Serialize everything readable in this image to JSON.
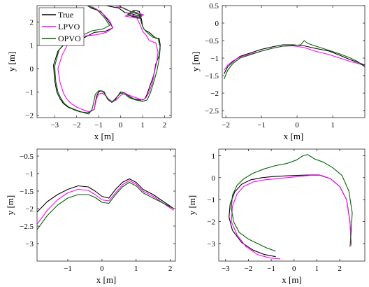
{
  "colors": {
    "true": "#000000",
    "lpvo": "#ff00ff",
    "opvo": "#006400"
  },
  "chart_data": [
    {
      "type": "line",
      "xlabel": "x [m]",
      "ylabel": "y [m]",
      "xlim": [
        -3.8,
        2.3
      ],
      "ylim": [
        -2.1,
        2.7
      ],
      "xticks": [
        -3,
        -2,
        -1,
        0,
        1,
        2
      ],
      "yticks": [
        -2,
        -1,
        0,
        1,
        2
      ],
      "legend": "top-left",
      "series": [
        {
          "name": "True",
          "color": "#000000",
          "x": [
            -1.5,
            -1.35,
            -1.2,
            -0.9,
            -0.6,
            -0.35,
            -0.7,
            -1.2,
            -1.6,
            -2.0,
            -2.5,
            -2.85,
            -3.05,
            -3.0,
            -2.9,
            -2.75,
            -2.6,
            -2.4,
            -2.15,
            -1.85,
            -1.5,
            -1.2,
            -1.1,
            -1.0,
            -0.9,
            -0.75,
            -0.6,
            -0.4,
            -0.25,
            -0.15,
            0.0,
            0.2,
            0.4,
            0.6,
            0.9,
            1.1,
            1.2,
            1.35,
            1.5,
            1.6,
            1.75,
            1.8,
            1.75,
            1.6,
            1.3,
            1.1,
            1.0,
            0.95,
            0.85,
            0.6,
            0.3,
            0.9,
            0.85,
            0.5,
            0.2,
            -0.1,
            -0.4,
            -0.65
          ],
          "y": [
            2.7,
            2.6,
            2.55,
            2.45,
            2.1,
            1.75,
            1.6,
            1.55,
            1.35,
            1.2,
            1.1,
            0.75,
            0.15,
            -0.5,
            -1.0,
            -1.3,
            -1.5,
            -1.65,
            -1.75,
            -1.85,
            -1.9,
            -1.75,
            -1.2,
            -1.0,
            -0.95,
            -1.0,
            -1.3,
            -1.45,
            -1.35,
            -1.2,
            -1.0,
            -1.05,
            -1.2,
            -1.3,
            -1.35,
            -1.3,
            -1.1,
            -0.7,
            -0.3,
            0.2,
            0.55,
            1.0,
            1.3,
            1.3,
            1.55,
            1.65,
            1.8,
            2.1,
            2.45,
            2.5,
            2.3,
            2.15,
            2.25,
            2.35,
            2.4,
            2.6,
            2.65,
            2.7
          ]
        },
        {
          "name": "LPVO",
          "color": "#ff00ff",
          "x": [
            -1.3,
            -1.1,
            -0.8,
            -0.5,
            -0.35,
            -0.65,
            -1.1,
            -1.6,
            -2.0,
            -2.4,
            -2.65,
            -2.85,
            -2.75,
            -2.6,
            -2.45,
            -2.25,
            -2.0,
            -1.75,
            -1.45,
            -1.2,
            -1.1,
            -1.0,
            -0.85,
            -0.7,
            -0.55,
            -0.4,
            -0.2,
            0.0,
            0.2,
            0.4,
            0.7,
            1.0,
            1.15,
            1.3,
            1.45,
            1.55,
            1.65,
            1.7,
            1.6,
            1.3,
            1.15,
            1.0,
            0.9,
            0.75,
            0.5,
            0.2,
            0.8,
            1.05,
            0.75,
            0.45,
            0.15,
            -0.2
          ],
          "y": [
            2.65,
            2.55,
            2.35,
            2.05,
            1.75,
            1.55,
            1.45,
            1.4,
            1.3,
            1.05,
            0.6,
            0.0,
            -0.6,
            -1.05,
            -1.3,
            -1.5,
            -1.65,
            -1.75,
            -1.85,
            -1.75,
            -1.3,
            -1.1,
            -1.05,
            -1.15,
            -1.3,
            -1.4,
            -1.35,
            -1.15,
            -1.05,
            -1.15,
            -1.25,
            -1.35,
            -1.25,
            -1.0,
            -0.6,
            -0.1,
            0.3,
            0.7,
            1.1,
            1.2,
            1.45,
            1.6,
            1.85,
            2.15,
            2.35,
            2.25,
            2.15,
            2.3,
            2.4,
            2.45,
            2.6,
            2.65
          ]
        },
        {
          "name": "OPVO",
          "color": "#006400",
          "x": [
            -1.45,
            -1.3,
            -1.05,
            -0.75,
            -0.5,
            -0.8,
            -1.3,
            -1.7,
            -2.1,
            -2.5,
            -2.8,
            -3.0,
            -2.95,
            -2.85,
            -2.7,
            -2.55,
            -2.35,
            -2.1,
            -1.8,
            -1.45,
            -1.3,
            -1.25,
            -1.15,
            -1.0,
            -0.85,
            -0.7,
            -0.55,
            -0.4,
            -0.25,
            0.0,
            0.2,
            0.4,
            0.7,
            1.0,
            1.2,
            1.35,
            1.5,
            1.65,
            1.75,
            1.8,
            1.7,
            1.45,
            1.2,
            1.05,
            0.95,
            0.85,
            0.6,
            0.3,
            0.9,
            0.95,
            0.55,
            0.2,
            -0.1,
            -0.45,
            -0.7
          ],
          "y": [
            2.72,
            2.62,
            2.5,
            2.2,
            1.85,
            1.7,
            1.62,
            1.45,
            1.3,
            1.15,
            0.8,
            0.1,
            -0.55,
            -1.0,
            -1.3,
            -1.5,
            -1.65,
            -1.75,
            -1.85,
            -1.95,
            -1.75,
            -1.55,
            -1.1,
            -0.95,
            -0.95,
            -1.1,
            -1.35,
            -1.45,
            -1.3,
            -1.05,
            -1.1,
            -1.25,
            -1.35,
            -1.4,
            -1.35,
            -1.05,
            -0.6,
            -0.1,
            0.4,
            0.9,
            1.3,
            1.35,
            1.55,
            1.7,
            1.95,
            2.3,
            2.45,
            2.3,
            2.2,
            2.3,
            2.4,
            2.55,
            2.7,
            2.72,
            2.7
          ]
        }
      ]
    },
    {
      "type": "line",
      "xlabel": "x [m]",
      "ylabel": "y [m]",
      "xlim": [
        -2.1,
        1.9
      ],
      "ylim": [
        -2.7,
        0.5
      ],
      "xticks": [
        -2,
        -1,
        0,
        1
      ],
      "yticks": [
        -2.5,
        -2,
        -1.5,
        -1,
        -0.5,
        0,
        0.5
      ],
      "series": [
        {
          "name": "True",
          "color": "#000000",
          "x": [
            -2.05,
            -1.95,
            -1.8,
            -1.6,
            -1.3,
            -1.0,
            -0.7,
            -0.4,
            -0.1,
            0.2,
            0.5,
            0.9,
            1.2,
            1.5,
            1.7,
            1.9
          ],
          "y": [
            -1.45,
            -1.25,
            -1.1,
            -0.95,
            -0.85,
            -0.75,
            -0.68,
            -0.62,
            -0.62,
            -0.65,
            -0.72,
            -0.8,
            -0.92,
            -1.05,
            -1.12,
            -1.2
          ]
        },
        {
          "name": "LPVO",
          "color": "#ff00ff",
          "x": [
            -2.05,
            -1.95,
            -1.8,
            -1.6,
            -1.3,
            -1.0,
            -0.7,
            -0.4,
            -0.1,
            0.2,
            0.5,
            0.9,
            1.2,
            1.5,
            1.7,
            1.9
          ],
          "y": [
            -1.35,
            -1.2,
            -1.08,
            -0.97,
            -0.88,
            -0.8,
            -0.72,
            -0.66,
            -0.65,
            -0.7,
            -0.8,
            -0.9,
            -1.0,
            -1.1,
            -1.15,
            -1.22
          ]
        },
        {
          "name": "OPVO",
          "color": "#006400",
          "x": [
            -2.05,
            -1.95,
            -1.8,
            -1.6,
            -1.3,
            -1.0,
            -0.7,
            -0.4,
            -0.1,
            0.1,
            0.2,
            0.3,
            0.5,
            0.9,
            1.2,
            1.5,
            1.7,
            1.9
          ],
          "y": [
            -1.6,
            -1.35,
            -1.15,
            -1.0,
            -0.9,
            -0.8,
            -0.72,
            -0.66,
            -0.64,
            -0.62,
            -0.5,
            -0.58,
            -0.65,
            -0.78,
            -0.88,
            -1.0,
            -1.1,
            -1.25
          ]
        }
      ]
    },
    {
      "type": "line",
      "xlabel": "x [m]",
      "ylabel": "y [m]",
      "xlim": [
        -1.9,
        2.15
      ],
      "ylim": [
        -3.5,
        -0.3
      ],
      "xticks": [
        -1,
        0,
        1,
        2
      ],
      "yticks": [
        -3,
        -2.5,
        -2,
        -1.5,
        -1,
        -0.5
      ],
      "series": [
        {
          "name": "True",
          "color": "#000000",
          "x": [
            -1.9,
            -1.6,
            -1.3,
            -1.0,
            -0.7,
            -0.4,
            -0.2,
            0.0,
            0.2,
            0.4,
            0.6,
            0.8,
            1.0,
            1.2,
            1.5,
            1.8,
            2.1
          ],
          "y": [
            -2.1,
            -1.8,
            -1.6,
            -1.45,
            -1.35,
            -1.38,
            -1.5,
            -1.65,
            -1.7,
            -1.45,
            -1.25,
            -1.15,
            -1.25,
            -1.45,
            -1.6,
            -1.8,
            -2.0
          ]
        },
        {
          "name": "LPVO",
          "color": "#ff00ff",
          "x": [
            -1.9,
            -1.6,
            -1.3,
            -1.0,
            -0.7,
            -0.4,
            -0.2,
            0.0,
            0.2,
            0.4,
            0.6,
            0.8,
            1.0,
            1.2,
            1.5,
            1.8,
            2.1
          ],
          "y": [
            -2.45,
            -2.05,
            -1.75,
            -1.55,
            -1.45,
            -1.48,
            -1.6,
            -1.75,
            -1.78,
            -1.55,
            -1.32,
            -1.2,
            -1.3,
            -1.5,
            -1.65,
            -1.85,
            -2.05
          ]
        },
        {
          "name": "OPVO",
          "color": "#006400",
          "x": [
            -1.9,
            -1.6,
            -1.3,
            -1.0,
            -0.7,
            -0.4,
            -0.2,
            0.0,
            0.2,
            0.4,
            0.6,
            0.8,
            1.0,
            1.2,
            1.5,
            1.8,
            2.1
          ],
          "y": [
            -2.6,
            -2.2,
            -1.9,
            -1.7,
            -1.6,
            -1.6,
            -1.68,
            -1.82,
            -1.85,
            -1.6,
            -1.38,
            -1.25,
            -1.35,
            -1.55,
            -1.7,
            -1.85,
            -2.0
          ]
        }
      ]
    },
    {
      "type": "line",
      "xlabel": "x [m]",
      "ylabel": "y [m]",
      "xlim": [
        -3.3,
        3.1
      ],
      "ylim": [
        -3.8,
        1.3
      ],
      "xticks": [
        -3,
        -2,
        -1,
        0,
        1,
        2
      ],
      "yticks": [
        -3,
        -2,
        -1,
        0,
        1
      ],
      "series": [
        {
          "name": "True",
          "color": "#000000",
          "x": [
            -0.8,
            -1.3,
            -1.8,
            -2.3,
            -2.7,
            -2.85,
            -2.8,
            -2.6,
            -2.3,
            -1.9,
            -1.4,
            -0.9,
            -0.4,
            0.1,
            0.6,
            1.1,
            1.6,
            2.0,
            2.3,
            2.45,
            2.5
          ],
          "y": [
            -3.6,
            -3.5,
            -3.3,
            -2.95,
            -2.4,
            -1.8,
            -1.2,
            -0.65,
            -0.3,
            -0.1,
            0.0,
            0.05,
            0.08,
            0.1,
            0.12,
            0.12,
            -0.05,
            -0.4,
            -1.0,
            -2.0,
            -3.0
          ]
        },
        {
          "name": "LPVO",
          "color": "#ff00ff",
          "x": [
            -0.6,
            -1.1,
            -1.6,
            -2.1,
            -2.5,
            -2.75,
            -2.7,
            -2.5,
            -2.2,
            -1.8,
            -1.3,
            -0.8,
            -0.3,
            0.2,
            0.7,
            1.2,
            1.6,
            2.0,
            2.3,
            2.45,
            2.5
          ],
          "y": [
            -3.7,
            -3.65,
            -3.5,
            -3.15,
            -2.6,
            -2.0,
            -1.3,
            -0.75,
            -0.4,
            -0.2,
            -0.1,
            -0.05,
            0.0,
            0.05,
            0.1,
            0.1,
            -0.05,
            -0.4,
            -1.0,
            -2.0,
            -3.1
          ]
        },
        {
          "name": "OPVO",
          "color": "#006400",
          "x": [
            -0.8,
            -1.2,
            -1.6,
            -2.0,
            -2.4,
            -2.65,
            -2.75,
            -2.7,
            -2.5,
            -2.2,
            -1.8,
            -1.3,
            -0.8,
            -0.3,
            0.1,
            0.4,
            0.6,
            0.9,
            1.3,
            1.7,
            2.1,
            2.4,
            2.55,
            2.5,
            2.45
          ],
          "y": [
            -3.35,
            -3.2,
            -3.0,
            -2.8,
            -2.5,
            -2.0,
            -1.4,
            -0.8,
            -0.35,
            -0.05,
            0.2,
            0.4,
            0.55,
            0.65,
            0.8,
            1.0,
            1.05,
            0.85,
            0.7,
            0.45,
            0.1,
            -0.6,
            -1.6,
            -2.5,
            -3.15
          ]
        }
      ]
    }
  ]
}
